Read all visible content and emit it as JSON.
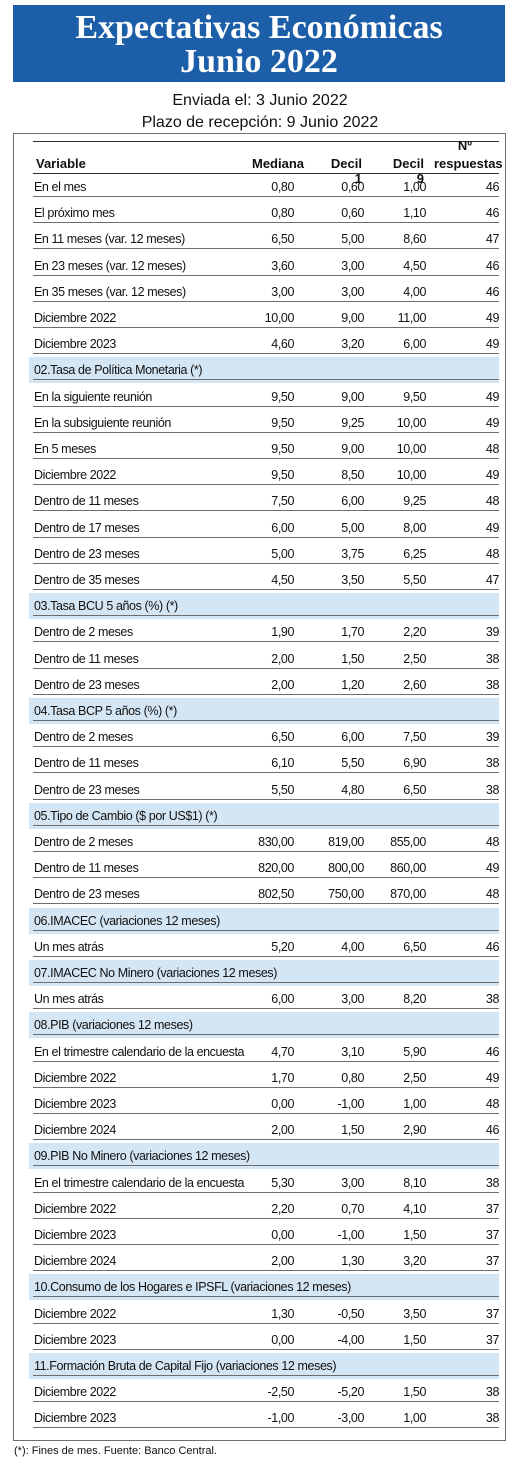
{
  "header": {
    "title_line1": "Expectativas Económicas",
    "title_line2": "Junio 2022",
    "sent": "Enviada el: 3 Junio 2022",
    "deadline": "Plazo de recepción: 9 Junio 2022"
  },
  "colors": {
    "banner": "#1c5fa8",
    "section_band": "#d4e6f4"
  },
  "table": {
    "columns": {
      "variable": "Variable",
      "mediana": "Mediana",
      "decil1": "Decil 1",
      "decil9": "Decil 9",
      "respuestas_top": "Nº",
      "respuestas_bottom": "respuestas"
    },
    "rows": [
      {
        "label": "En el mes",
        "mediana": "0,80",
        "decil1": "0,60",
        "decil9": "1,00",
        "n": "46"
      },
      {
        "label": "El próximo mes",
        "mediana": "0,80",
        "decil1": "0,60",
        "decil9": "1,10",
        "n": "46"
      },
      {
        "label": "En 11 meses (var. 12 meses)",
        "mediana": "6,50",
        "decil1": "5,00",
        "decil9": "8,60",
        "n": "47"
      },
      {
        "label": "En 23 meses (var. 12 meses)",
        "mediana": "3,60",
        "decil1": "3,00",
        "decil9": "4,50",
        "n": "46"
      },
      {
        "label": "En 35 meses (var. 12 meses)",
        "mediana": "3,00",
        "decil1": "3,00",
        "decil9": "4,00",
        "n": "46"
      },
      {
        "label": "Diciembre 2022",
        "mediana": "10,00",
        "decil1": "9,00",
        "decil9": "11,00",
        "n": "49"
      },
      {
        "label": "Diciembre 2023",
        "mediana": "4,60",
        "decil1": "3,20",
        "decil9": "6,00",
        "n": "49"
      },
      {
        "section": true,
        "label": "02.Tasa de Política Monetaria  (*)"
      },
      {
        "label": "En la siguiente reunión",
        "mediana": "9,50",
        "decil1": "9,00",
        "decil9": "9,50",
        "n": "49"
      },
      {
        "label": "En la subsiguiente reunión",
        "mediana": "9,50",
        "decil1": "9,25",
        "decil9": "10,00",
        "n": "49"
      },
      {
        "label": "En 5 meses",
        "mediana": "9,50",
        "decil1": "9,00",
        "decil9": "10,00",
        "n": "48"
      },
      {
        "label": "Diciembre 2022",
        "mediana": "9,50",
        "decil1": "8,50",
        "decil9": "10,00",
        "n": "49"
      },
      {
        "label": "Dentro de 11 meses",
        "mediana": "7,50",
        "decil1": "6,00",
        "decil9": "9,25",
        "n": "48"
      },
      {
        "label": "Dentro de 17 meses",
        "mediana": "6,00",
        "decil1": "5,00",
        "decil9": "8,00",
        "n": "49"
      },
      {
        "label": "Dentro de 23 meses",
        "mediana": "5,00",
        "decil1": "3,75",
        "decil9": "6,25",
        "n": "48"
      },
      {
        "label": "Dentro de 35 meses",
        "mediana": "4,50",
        "decil1": "3,50",
        "decil9": "5,50",
        "n": "47"
      },
      {
        "section": true,
        "label": "03.Tasa BCU 5 años  (%)  (*)"
      },
      {
        "label": "Dentro de 2 meses",
        "mediana": "1,90",
        "decil1": "1,70",
        "decil9": "2,20",
        "n": "39"
      },
      {
        "label": "Dentro de 11 meses",
        "mediana": "2,00",
        "decil1": "1,50",
        "decil9": "2,50",
        "n": "38"
      },
      {
        "label": "Dentro de 23 meses",
        "mediana": "2,00",
        "decil1": "1,20",
        "decil9": "2,60",
        "n": "38"
      },
      {
        "section": true,
        "label": "04.Tasa BCP 5 años  (%) (*)"
      },
      {
        "label": "Dentro de 2 meses",
        "mediana": "6,50",
        "decil1": "6,00",
        "decil9": "7,50",
        "n": "39"
      },
      {
        "label": "Dentro de 11 meses",
        "mediana": "6,10",
        "decil1": "5,50",
        "decil9": "6,90",
        "n": "38"
      },
      {
        "label": "Dentro de 23 meses",
        "mediana": "5,50",
        "decil1": "4,80",
        "decil9": "6,50",
        "n": "38"
      },
      {
        "section": true,
        "label": "05.Tipo de Cambio  ($ por US$1) (*)"
      },
      {
        "label": "Dentro de 2 meses",
        "mediana": "830,00",
        "decil1": "819,00",
        "decil9": "855,00",
        "n": "48"
      },
      {
        "label": "Dentro de 11 meses",
        "mediana": "820,00",
        "decil1": "800,00",
        "decil9": "860,00",
        "n": "49"
      },
      {
        "label": "Dentro de 23 meses",
        "mediana": "802,50",
        "decil1": "750,00",
        "decil9": "870,00",
        "n": "48"
      },
      {
        "section": true,
        "label": "06.IMACEC  (variaciones 12 meses)"
      },
      {
        "label": "Un mes atrás",
        "mediana": "5,20",
        "decil1": "4,00",
        "decil9": "6,50",
        "n": "46"
      },
      {
        "section": true,
        "label": "07.IMACEC No Minero (variaciones 12 meses)"
      },
      {
        "label": "Un mes atrás",
        "mediana": "6,00",
        "decil1": "3,00",
        "decil9": "8,20",
        "n": "38"
      },
      {
        "section": true,
        "label": "08.PIB  (variaciones 12 meses)"
      },
      {
        "label": "En el trimestre calendario de la encuesta",
        "mediana": "4,70",
        "decil1": "3,10",
        "decil9": "5,90",
        "n": "46"
      },
      {
        "label": "Diciembre 2022",
        "mediana": "1,70",
        "decil1": "0,80",
        "decil9": "2,50",
        "n": "49"
      },
      {
        "label": "Diciembre 2023",
        "mediana": "0,00",
        "decil1": "-1,00",
        "decil9": "1,00",
        "n": "48"
      },
      {
        "label": "Diciembre 2024",
        "mediana": "2,00",
        "decil1": "1,50",
        "decil9": "2,90",
        "n": "46"
      },
      {
        "section": true,
        "label": "09.PIB No Minero (variaciones 12 meses)"
      },
      {
        "label": "En el trimestre calendario de la encuesta",
        "mediana": "5,30",
        "decil1": "3,00",
        "decil9": "8,10",
        "n": "38"
      },
      {
        "label": "Diciembre 2022",
        "mediana": "2,20",
        "decil1": "0,70",
        "decil9": "4,10",
        "n": "37"
      },
      {
        "label": "Diciembre 2023",
        "mediana": "0,00",
        "decil1": "-1,00",
        "decil9": "1,50",
        "n": "37"
      },
      {
        "label": "Diciembre 2024",
        "mediana": "2,00",
        "decil1": "1,30",
        "decil9": "3,20",
        "n": "37"
      },
      {
        "section": true,
        "label": "10.Consumo de los Hogares e IPSFL  (variaciones 12 meses)"
      },
      {
        "label": "Diciembre 2022",
        "mediana": "1,30",
        "decil1": "-0,50",
        "decil9": "3,50",
        "n": "37"
      },
      {
        "label": "Diciembre 2023",
        "mediana": "0,00",
        "decil1": "-4,00",
        "decil9": "1,50",
        "n": "37"
      },
      {
        "section": true,
        "label": "11.Formación Bruta de Capital Fijo  (variaciones 12 meses)"
      },
      {
        "label": "Diciembre 2022",
        "mediana": "-2,50",
        "decil1": "-5,20",
        "decil9": "1,50",
        "n": "38"
      },
      {
        "label": "Diciembre 2023",
        "mediana": "-1,00",
        "decil1": "-3,00",
        "decil9": "1,00",
        "n": "38"
      }
    ]
  },
  "footer": "(*): Fines de mes. Fuente: Banco Central."
}
